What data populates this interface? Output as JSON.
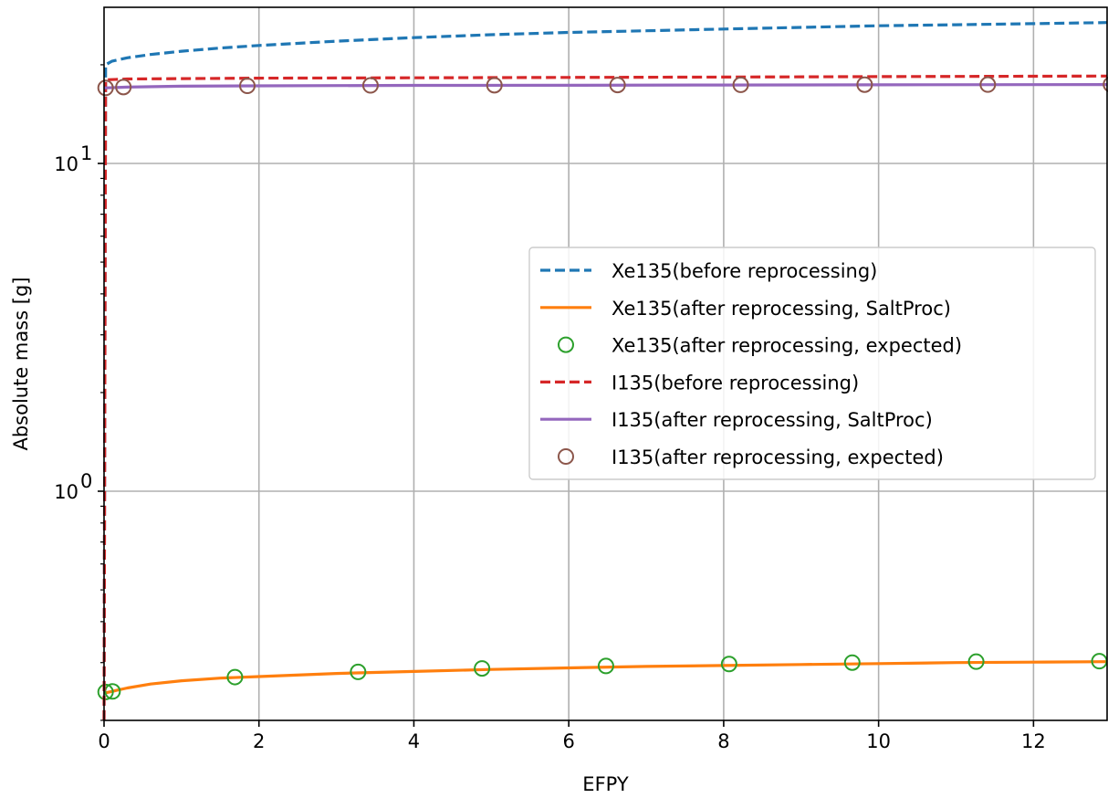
{
  "chart_data": {
    "type": "line",
    "xlabel": "EFPY",
    "ylabel": "Absolute mass [g]",
    "yscale": "log",
    "xlim": [
      0,
      12.95
    ],
    "ylim": [
      0.2,
      30
    ],
    "grid": true,
    "legend_position": "center-right",
    "x_ticks": [
      {
        "value": 0,
        "label": "0"
      },
      {
        "value": 2,
        "label": "2"
      },
      {
        "value": 4,
        "label": "4"
      },
      {
        "value": 6,
        "label": "6"
      },
      {
        "value": 8,
        "label": "8"
      },
      {
        "value": 10,
        "label": "10"
      },
      {
        "value": 12,
        "label": "12"
      }
    ],
    "y_ticks": [
      {
        "value": 1,
        "label": "10",
        "exp": "0"
      },
      {
        "value": 10,
        "label": "10",
        "exp": "1"
      }
    ],
    "series": [
      {
        "name": "Xe135(before reprocessing)",
        "color": "#1f77b4",
        "style": "dashed",
        "x": [
          0,
          0.02,
          0.1,
          0.3,
          0.6,
          1,
          1.5,
          2,
          3,
          4,
          5,
          6,
          7,
          8,
          9,
          10,
          11,
          12,
          12.95
        ],
        "y": [
          0.2,
          20.0,
          20.5,
          21.0,
          21.5,
          22.0,
          22.5,
          22.9,
          23.6,
          24.2,
          24.7,
          25.1,
          25.4,
          25.7,
          26.0,
          26.3,
          26.5,
          26.7,
          26.9
        ]
      },
      {
        "name": "Xe135(after reprocessing, SaltProc)",
        "color": "#ff7f0e",
        "style": "solid",
        "x": [
          0,
          0.1,
          0.3,
          0.6,
          1,
          1.5,
          2,
          3,
          4,
          5,
          6,
          7,
          8,
          9,
          10,
          11,
          12,
          12.95
        ],
        "y": [
          0.242,
          0.245,
          0.251,
          0.258,
          0.264,
          0.269,
          0.272,
          0.278,
          0.282,
          0.286,
          0.289,
          0.292,
          0.294,
          0.296,
          0.298,
          0.3,
          0.301,
          0.302
        ]
      },
      {
        "name": "Xe135(after reprocessing, expected)",
        "color": "#2ca02c",
        "style": "markers",
        "x": [
          0.02,
          0.11,
          1.69,
          3.28,
          4.88,
          6.48,
          8.07,
          9.66,
          11.26,
          12.85
        ],
        "y": [
          0.244,
          0.245,
          0.271,
          0.281,
          0.288,
          0.293,
          0.297,
          0.3,
          0.302,
          0.303
        ]
      },
      {
        "name": "I135(before reprocessing)",
        "color": "#d62728",
        "style": "dashed",
        "x": [
          0,
          0.02,
          0.3,
          1,
          2,
          4,
          6,
          8,
          10,
          12,
          12.95
        ],
        "y": [
          0.2,
          18.0,
          18.1,
          18.15,
          18.2,
          18.25,
          18.3,
          18.35,
          18.4,
          18.45,
          18.48
        ]
      },
      {
        "name": "I135(after reprocessing, SaltProc)",
        "color": "#9467bd",
        "style": "solid",
        "x": [
          0,
          0.3,
          1,
          2,
          4,
          6,
          8,
          10,
          12,
          12.95
        ],
        "y": [
          17.0,
          17.1,
          17.2,
          17.25,
          17.3,
          17.32,
          17.35,
          17.37,
          17.39,
          17.4
        ]
      },
      {
        "name": "I135(after reprocessing, expected)",
        "color": "#8c564b",
        "style": "markers",
        "x": [
          0.02,
          0.25,
          1.85,
          3.44,
          5.04,
          6.63,
          8.22,
          9.82,
          11.41,
          13.0
        ],
        "y": [
          17.0,
          17.1,
          17.25,
          17.3,
          17.32,
          17.35,
          17.37,
          17.39,
          17.4,
          17.42
        ]
      }
    ]
  }
}
